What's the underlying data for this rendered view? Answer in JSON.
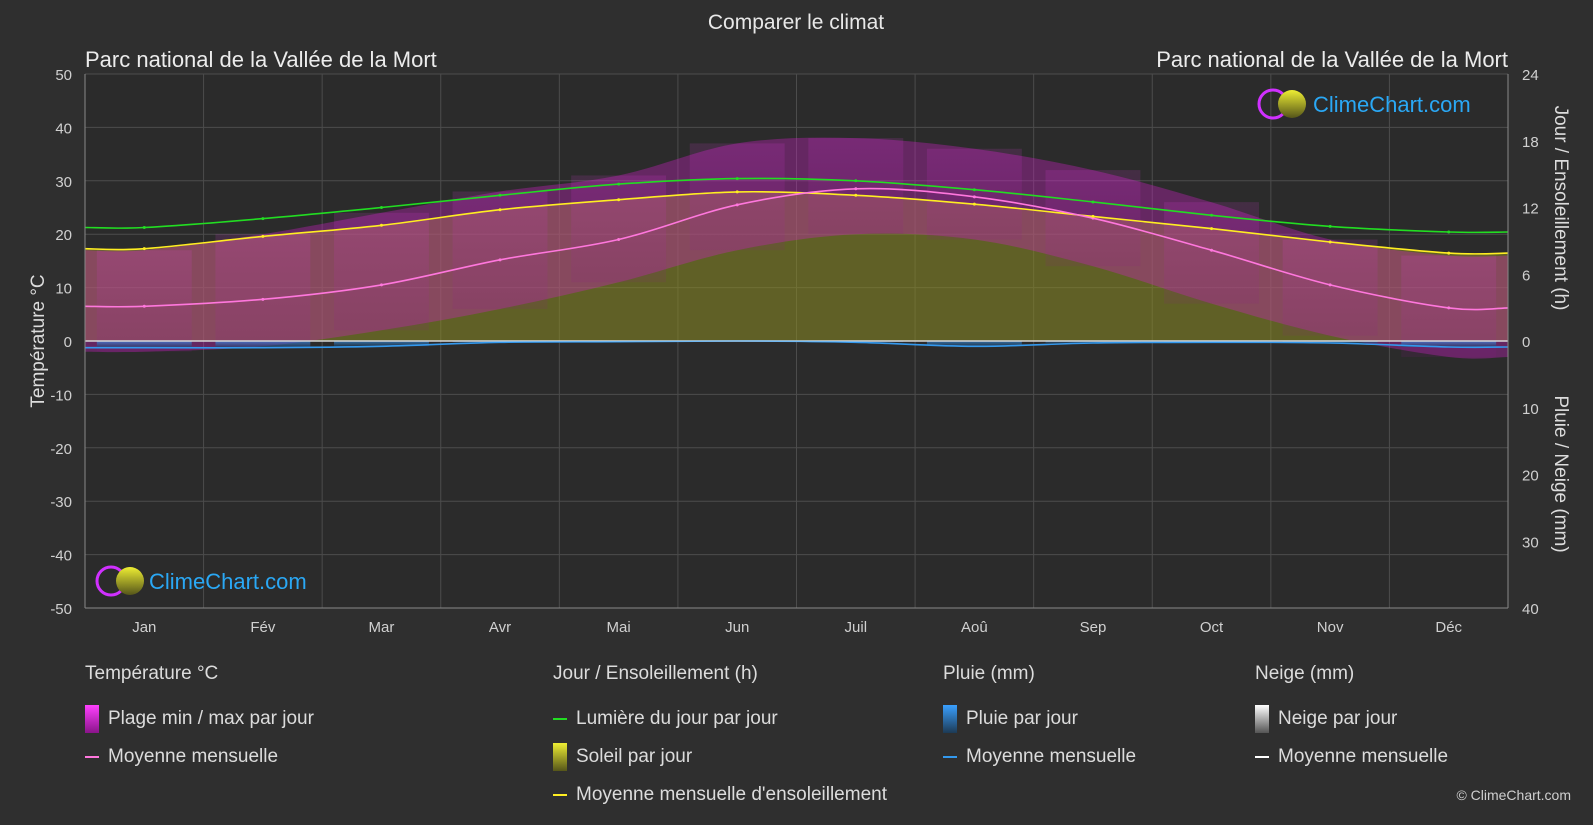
{
  "title": "Comparer le climat",
  "location_left": "Parc national de la Vallée de la Mort",
  "location_right": "Parc national de la Vallée de la Mort",
  "logo_text": "ClimeChart.com",
  "copyright": "© ClimeChart.com",
  "colors": {
    "background": "#2f2f2f",
    "temp_range": "#e020e0",
    "temp_mean": "#ff77dd",
    "daylight": "#22dd22",
    "sunshine_band": "#aaaa22",
    "sunshine_mean": "#ffee22",
    "rain": "#3399ee",
    "snow": "#ffffff",
    "logo_text": "#2aa8f5"
  },
  "legend": {
    "temperature": {
      "heading": "Température °C",
      "range": "Plage min / max par jour",
      "mean": "Moyenne mensuelle"
    },
    "sun": {
      "heading": "Jour / Ensoleillement (h)",
      "daylight": "Lumière du jour par jour",
      "sunshine": "Soleil par jour",
      "mean": "Moyenne mensuelle d'ensoleillement"
    },
    "rain": {
      "heading": "Pluie (mm)",
      "daily": "Pluie par jour",
      "mean": "Moyenne mensuelle"
    },
    "snow": {
      "heading": "Neige (mm)",
      "daily": "Neige par jour",
      "mean": "Moyenne mensuelle"
    }
  },
  "chart_data": {
    "type": "line",
    "x_categories": [
      "Jan",
      "Fév",
      "Mar",
      "Avr",
      "Mai",
      "Jun",
      "Juil",
      "Aoû",
      "Sep",
      "Oct",
      "Nov",
      "Déc"
    ],
    "y_left": {
      "label": "Température °C",
      "range": [
        -50,
        50
      ],
      "ticks": [
        50,
        40,
        30,
        20,
        10,
        0,
        -10,
        -20,
        -30,
        -40,
        -50
      ]
    },
    "y_right_top": {
      "label": "Jour / Ensoleillement (h)",
      "range": [
        0,
        24
      ],
      "ticks": [
        24,
        18,
        12,
        6,
        0
      ]
    },
    "y_right_bottom": {
      "label": "Pluie / Neige (mm)",
      "range": [
        0,
        40
      ],
      "ticks": [
        0,
        10,
        20,
        30,
        40
      ]
    },
    "grid": true,
    "series": [
      {
        "name": "Moyenne mensuelle",
        "group": "temperature",
        "unit": "°C",
        "values": [
          6.5,
          7.8,
          10.5,
          15.2,
          19.0,
          25.5,
          28.5,
          27.0,
          23.0,
          17.0,
          10.5,
          6.2
        ]
      },
      {
        "name": "Plage min / max par jour",
        "group": "temperature",
        "unit": "°C",
        "min": [
          -2,
          -1,
          2,
          6,
          11,
          17,
          20,
          19,
          14,
          7,
          1,
          -3
        ],
        "max": [
          17,
          20,
          24,
          28,
          31,
          37,
          38,
          36,
          32,
          26,
          19,
          16
        ]
      },
      {
        "name": "Lumière du jour par jour",
        "group": "sun",
        "unit": "h",
        "values": [
          10.2,
          11.0,
          12.0,
          13.1,
          14.1,
          14.6,
          14.4,
          13.6,
          12.5,
          11.3,
          10.3,
          9.8
        ]
      },
      {
        "name": "Moyenne mensuelle d'ensoleillement",
        "group": "sun",
        "unit": "h",
        "values": [
          8.3,
          9.4,
          10.4,
          11.8,
          12.7,
          13.4,
          13.1,
          12.3,
          11.2,
          10.1,
          8.9,
          7.9
        ]
      },
      {
        "name": "Moyenne mensuelle",
        "group": "rain",
        "unit": "mm",
        "values": [
          1.0,
          1.0,
          0.8,
          0.2,
          0.1,
          0.0,
          0.2,
          0.8,
          0.3,
          0.2,
          0.3,
          0.9
        ]
      },
      {
        "name": "Moyenne mensuelle",
        "group": "snow",
        "unit": "mm",
        "values": [
          0,
          0,
          0,
          0,
          0,
          0,
          0,
          0,
          0,
          0,
          0,
          0
        ]
      }
    ]
  }
}
